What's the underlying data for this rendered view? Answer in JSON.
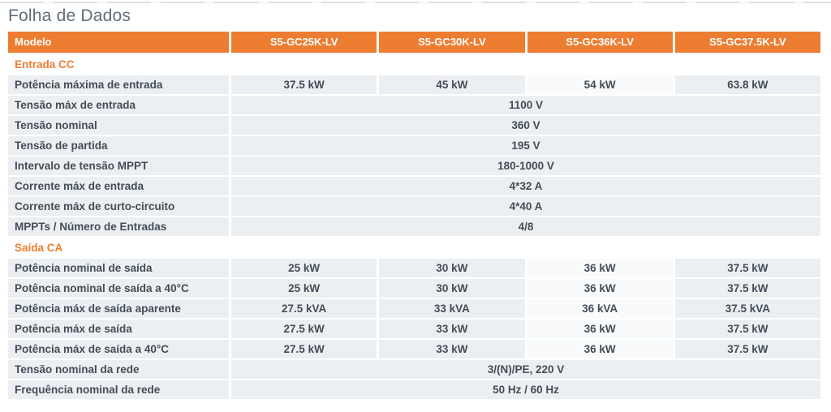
{
  "page": {
    "title": "Folha de Dados"
  },
  "colors": {
    "accent_orange": "#ED7D31",
    "header_text": "#FFFFFF",
    "row_background": "#ECEFF2",
    "row_background_light": "#F8FAFB",
    "body_text": "#434D57",
    "title_text": "#626D79"
  },
  "table": {
    "header": {
      "label": "Modelo",
      "models": [
        "S5-GC25K-LV",
        "S5-GC30K-LV",
        "S5-GC36K-LV",
        "S5-GC37.5K-LV"
      ]
    },
    "sections": [
      {
        "title": "Entrada CC",
        "rows": [
          {
            "label": "Potência máxima de entrada",
            "values": [
              "37.5 kW",
              "45 kW",
              "54 kW",
              "63.8 kW"
            ]
          },
          {
            "label": "Tensão máx de entrada",
            "span": "1100 V"
          },
          {
            "label": "Tensão nominal",
            "span": "360 V"
          },
          {
            "label": "Tensão de partida",
            "span": "195 V"
          },
          {
            "label": "Intervalo de tensão MPPT",
            "span": "180-1000 V"
          },
          {
            "label": "Corrente máx de entrada",
            "span": "4*32 A"
          },
          {
            "label": "Corrente máx de curto-circuito",
            "span": "4*40 A"
          },
          {
            "label": "MPPTs / Número de Entradas",
            "span": "4/8"
          }
        ]
      },
      {
        "title": "Saída CA",
        "rows": [
          {
            "label": "Potência nominal de saída",
            "values": [
              "25 kW",
              "30 kW",
              "36 kW",
              "37.5 kW"
            ]
          },
          {
            "label": "Potência nominal de saída a 40°C",
            "values": [
              "25 kW",
              "30 kW",
              "36 kW",
              "37.5 kW"
            ]
          },
          {
            "label": "Potência máx de saída aparente",
            "values": [
              "27.5 kVA",
              "33 kVA",
              "36 kVA",
              "37.5 kVA"
            ]
          },
          {
            "label": "Potência máx de saída",
            "values": [
              "27.5 kW",
              "33 kW",
              "36 kW",
              "37.5 kW"
            ]
          },
          {
            "label": "Potência máx de saída a 40°C",
            "values": [
              "27.5 kW",
              "33 kW",
              "36 kW",
              "37.5 kW"
            ]
          },
          {
            "label": "Tensão nominal da rede",
            "span": "3/(N)/PE, 220 V"
          },
          {
            "label": "Frequência nominal da rede",
            "span": "50 Hz / 60 Hz"
          }
        ]
      }
    ]
  }
}
